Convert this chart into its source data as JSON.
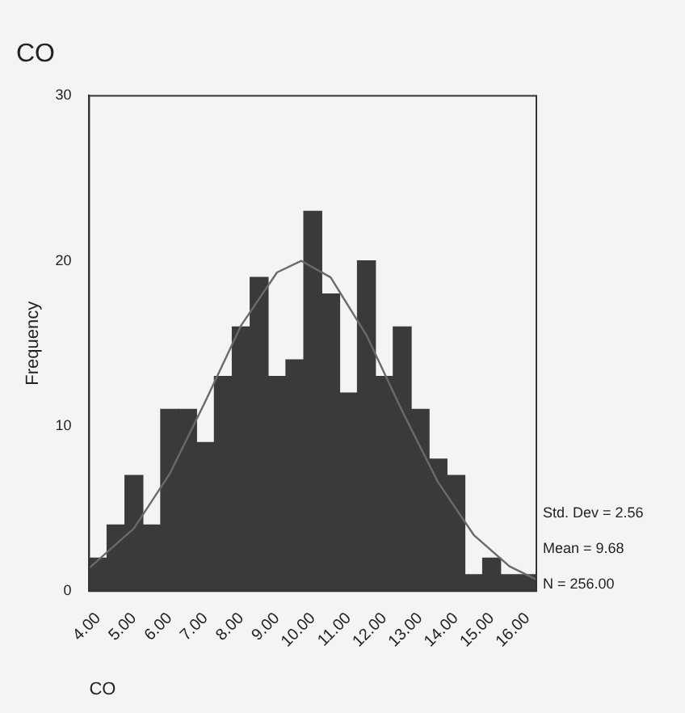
{
  "chart_data": {
    "type": "histogram",
    "title": "CO",
    "xlabel": "CO",
    "ylabel": "Frequency",
    "bins": [
      3.75,
      4.25,
      4.75,
      5.25,
      5.75,
      6.25,
      6.75,
      7.25,
      7.75,
      8.25,
      8.75,
      9.25,
      9.75,
      10.25,
      10.75,
      11.25,
      11.75,
      12.25,
      12.75,
      13.25,
      13.75,
      14.25,
      14.75,
      15.25,
      15.75,
      16.25
    ],
    "values": [
      2,
      4,
      7,
      4,
      11,
      11,
      9,
      13,
      16,
      19,
      13,
      14,
      23,
      18,
      12,
      20,
      13,
      16,
      11,
      8,
      7,
      1,
      2,
      1,
      1
    ],
    "color": "#3a3a3a",
    "series": [
      {
        "type": "line",
        "color": "#6a6a6a",
        "x": [
          3.75,
          5,
          6,
          7,
          8,
          9,
          9.68,
          10.5,
          11.5,
          12.5,
          13.5,
          14.5,
          15.5,
          16.25
        ],
        "values": [
          1.4,
          3.8,
          7.1,
          11.5,
          16.1,
          19.3,
          20,
          19,
          15.5,
          10.9,
          6.6,
          3.4,
          1.5,
          0.7
        ]
      }
    ],
    "xlim": [
      3.75,
      16.25
    ],
    "xticks": [
      {
        "value": 4,
        "label": "4.00"
      },
      {
        "value": 5,
        "label": "5.00"
      },
      {
        "value": 6,
        "label": "6.00"
      },
      {
        "value": 7,
        "label": "7.00"
      },
      {
        "value": 8,
        "label": "8.00"
      },
      {
        "value": 9,
        "label": "9.00"
      },
      {
        "value": 10,
        "label": "10.00"
      },
      {
        "value": 11,
        "label": "11.00"
      },
      {
        "value": 12,
        "label": "12.00"
      },
      {
        "value": 13,
        "label": "13.00"
      },
      {
        "value": 14,
        "label": "14.00"
      },
      {
        "value": 15,
        "label": "15.00"
      },
      {
        "value": 16,
        "label": "16.00"
      }
    ],
    "ylim": [
      0,
      30
    ],
    "yticks": [
      0,
      10,
      20,
      30
    ],
    "grid": false,
    "legend": false,
    "marker": "none",
    "line_style": "solid",
    "annotations": [
      "Std. Dev = 2.56",
      "Mean = 9.68",
      "N = 256.00"
    ]
  }
}
